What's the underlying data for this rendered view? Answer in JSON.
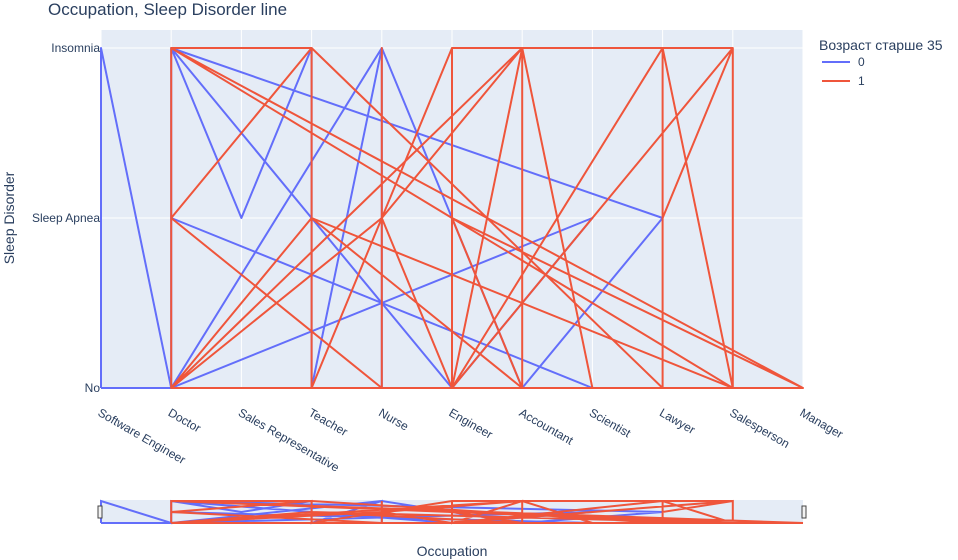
{
  "chart_data": {
    "type": "line",
    "title": "Occupation, Sleep Disorder line",
    "xlabel": "Occupation",
    "ylabel": "Sleep Disorder",
    "categories": [
      "Software Engineer",
      "Doctor",
      "Sales Representative",
      "Teacher",
      "Nurse",
      "Engineer",
      "Accountant",
      "Scientist",
      "Lawyer",
      "Salesperson",
      "Manager"
    ],
    "y_categories": [
      "No",
      "Sleep Apnea",
      "Insomnia"
    ],
    "legend": {
      "title": "Возраст старше 35",
      "placement": "top-right"
    },
    "rangeslider": true,
    "grid": true,
    "series": [
      {
        "name": "0",
        "color": "#636efa",
        "x": [
          "Software Engineer",
          "Software Engineer",
          "Software Engineer",
          "Doctor",
          "Doctor",
          "Doctor",
          "Sales Representative",
          "Teacher",
          "Teacher",
          "Nurse",
          "Nurse",
          "Nurse",
          "Engineer",
          "Scientist",
          "Doctor",
          "Doctor",
          "Scientist",
          "Engineer",
          "Doctor",
          "Lawyer",
          "Accountant",
          "Nurse",
          "Teacher",
          "Doctor",
          "Nurse",
          "Doctor",
          "Software Engineer"
        ],
        "y": [
          "No",
          "Insomnia",
          "Insomnia",
          "No",
          "Insomnia",
          "Insomnia",
          "Sleep Apnea",
          "Insomnia",
          "No",
          "Insomnia",
          "Sleep Apnea",
          "No",
          "No",
          "Sleep Apnea",
          "No",
          "Sleep Apnea",
          "No",
          "No",
          "Insomnia",
          "Sleep Apnea",
          "No",
          "Insomnia",
          "No",
          "No",
          "Insomnia",
          "No",
          "No"
        ]
      },
      {
        "name": "1",
        "color": "#ef553b",
        "x": [
          "Doctor",
          "Doctor",
          "Teacher",
          "Teacher",
          "Teacher",
          "Nurse",
          "Nurse",
          "Nurse",
          "Nurse",
          "Engineer",
          "Engineer",
          "Engineer",
          "Engineer",
          "Accountant",
          "Accountant",
          "Accountant",
          "Lawyer",
          "Lawyer",
          "Lawyer",
          "Salesperson",
          "Salesperson",
          "Salesperson",
          "Manager",
          "Doctor",
          "Teacher",
          "Lawyer",
          "Nurse",
          "Doctor",
          "Doctor",
          "Teacher",
          "Teacher",
          "Engineer",
          "Salesperson",
          "Engineer",
          "Nurse",
          "Teacher",
          "Salesperson",
          "Engineer",
          "Doctor",
          "Salesperson",
          "Lawyer",
          "Engineer",
          "Accountant",
          "Doctor",
          "Teacher",
          "Accountant",
          "Engineer",
          "Manager",
          "Doctor",
          "Nurse",
          "Accountant",
          "Scientist",
          "Engineer",
          "Lawyer",
          "Doctor",
          "Teacher",
          "Salesperson"
        ],
        "y": [
          "No",
          "Insomnia",
          "Insomnia",
          "Sleep Apnea",
          "No",
          "No",
          "Insomnia",
          "Sleep Apnea",
          "No",
          "No",
          "Insomnia",
          "Sleep Apnea",
          "No",
          "Insomnia",
          "No",
          "No",
          "No",
          "Insomnia",
          "Sleep Apnea",
          "Insomnia",
          "Sleep Apnea",
          "No",
          "No",
          "Insomnia",
          "Insomnia",
          "No",
          "No",
          "Sleep Apnea",
          "Sleep Apnea",
          "Insomnia",
          "No",
          "Insomnia",
          "Insomnia",
          "No",
          "Sleep Apnea",
          "No",
          "No",
          "Sleep Apnea",
          "Insomnia",
          "No",
          "Insomnia",
          "No",
          "Insomnia",
          "No",
          "Sleep Apnea",
          "No",
          "Sleep Apnea",
          "No",
          "No",
          "Sleep Apnea",
          "Insomnia",
          "No",
          "No",
          "No",
          "No",
          "Sleep Apnea",
          "No"
        ]
      }
    ]
  }
}
